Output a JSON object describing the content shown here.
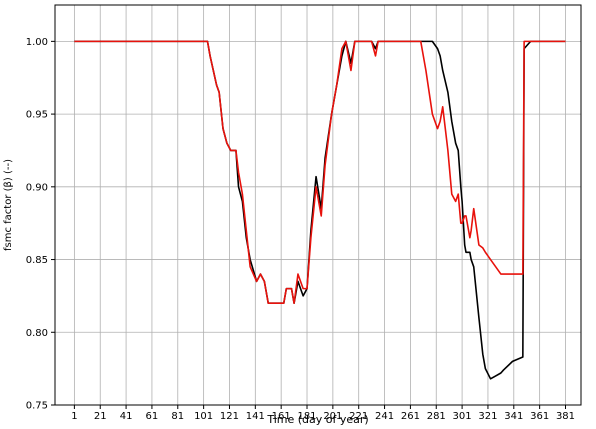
{
  "chart_data": {
    "type": "line",
    "xlabel": "Time (day of year)",
    "ylabel": "fsmc factor (β) (--)",
    "x": [
      1,
      104,
      106,
      111,
      113,
      116,
      119,
      122,
      126,
      128,
      131,
      134,
      137,
      142,
      145,
      148,
      151,
      163,
      165,
      169,
      171,
      174,
      178,
      181,
      184,
      188,
      192,
      195,
      200,
      204,
      208,
      211,
      215,
      218,
      231,
      234,
      236,
      269,
      273,
      278,
      282,
      284,
      286,
      290,
      293,
      296,
      298,
      300,
      301,
      303,
      304,
      307,
      308,
      310,
      314,
      317,
      319,
      323,
      327,
      331,
      333,
      340,
      348,
      349,
      354,
      381
    ],
    "series": [
      {
        "color": "#000000",
        "values": [
          1,
          1,
          0.99,
          0.97,
          0.965,
          0.94,
          0.93,
          0.925,
          0.925,
          0.9,
          0.89,
          0.865,
          0.85,
          0.835,
          0.84,
          0.835,
          0.82,
          0.82,
          0.83,
          0.83,
          0.82,
          0.835,
          0.825,
          0.83,
          0.87,
          0.907,
          0.885,
          0.92,
          0.95,
          0.97,
          0.99,
          1,
          0.985,
          1,
          1,
          0.995,
          1,
          1,
          1,
          1,
          0.995,
          0.99,
          0.98,
          0.965,
          0.945,
          0.93,
          0.925,
          0.9,
          0.89,
          0.86,
          0.855,
          0.855,
          0.85,
          0.845,
          0.81,
          0.785,
          0.775,
          0.768,
          0.77,
          0.772,
          0.774,
          0.78,
          0.783,
          0.995,
          1,
          1
        ]
      },
      {
        "color": "#e8120c",
        "values": [
          1,
          1,
          0.99,
          0.97,
          0.965,
          0.94,
          0.93,
          0.925,
          0.925,
          0.91,
          0.895,
          0.87,
          0.845,
          0.835,
          0.84,
          0.835,
          0.82,
          0.82,
          0.83,
          0.83,
          0.82,
          0.84,
          0.83,
          0.83,
          0.865,
          0.9,
          0.88,
          0.915,
          0.95,
          0.97,
          0.995,
          1,
          0.98,
          1,
          1,
          0.99,
          1,
          1,
          0.98,
          0.95,
          0.94,
          0.945,
          0.955,
          0.925,
          0.895,
          0.89,
          0.895,
          0.875,
          0.875,
          0.88,
          0.88,
          0.865,
          0.87,
          0.885,
          0.86,
          0.858,
          0.855,
          0.85,
          0.845,
          0.84,
          0.84,
          0.84,
          0.84,
          1,
          1,
          1
        ]
      }
    ],
    "xlim": [
      -14,
      393
    ],
    "xticks": [
      1,
      21,
      41,
      61,
      81,
      101,
      121,
      141,
      161,
      181,
      201,
      221,
      241,
      261,
      281,
      301,
      321,
      341,
      361,
      381
    ],
    "ylim": [
      0.75,
      1.025
    ],
    "yticks": [
      {
        "value": 0.75,
        "label": "0.75"
      },
      {
        "value": 0.8,
        "label": "0.80"
      },
      {
        "value": 0.85,
        "label": "0.85"
      },
      {
        "value": 0.9,
        "label": "0.90"
      },
      {
        "value": 0.95,
        "label": "0.95"
      },
      {
        "value": 1,
        "label": "1.00"
      }
    ],
    "grid": true
  }
}
